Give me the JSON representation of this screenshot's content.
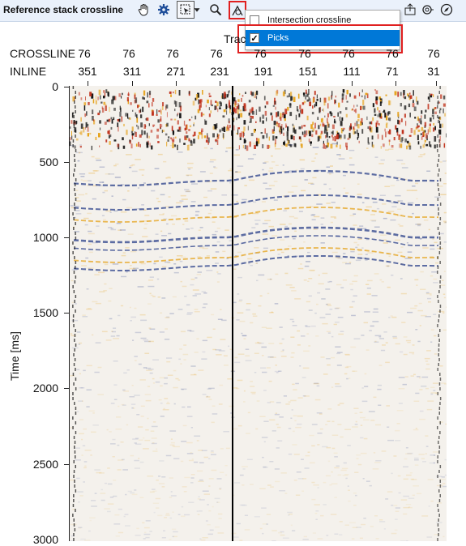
{
  "toolbar": {
    "title": "Reference stack crossline",
    "icons": [
      "pan-hand-icon",
      "gear-icon",
      "select-region-icon",
      "dropdown-arrow-icon",
      "zoom-icon",
      "picks-toggle-icon",
      "display-mode-icon",
      "rewind-icon",
      "filter-icon",
      "flag-icon",
      "layers-icon",
      "export-icon",
      "target-icon",
      "compass-icon"
    ]
  },
  "menu": {
    "items": [
      {
        "label": "Intersection crossline",
        "checked": false
      },
      {
        "label": "Picks",
        "checked": true
      }
    ]
  },
  "axes": {
    "top_title": "Trac",
    "crossline_label": "CROSSLINE",
    "inline_label": "INLINE",
    "crossline_values": [
      "76",
      "76",
      "76",
      "76",
      "76",
      "76",
      "76",
      "76",
      "76"
    ],
    "inline_values": [
      "351",
      "311",
      "271",
      "231",
      "191",
      "151",
      "111",
      "71",
      "31"
    ],
    "y_label": "Time [ms]",
    "y_ticks": [
      "0",
      "500",
      "1000",
      "1500",
      "2000",
      "2500",
      "3000"
    ]
  },
  "colors": {
    "highlight": "#e02020",
    "menu_selection": "#0078d7",
    "positive_amplitude": "#e6a21a",
    "negative_amplitude": "#2a3f8a"
  }
}
